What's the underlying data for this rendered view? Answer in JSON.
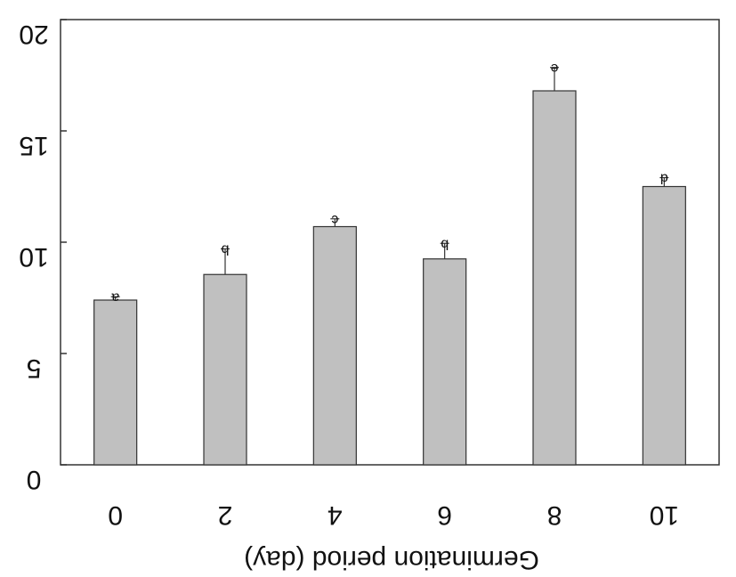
{
  "chart_data": {
    "type": "bar",
    "title": "",
    "xlabel": "Germination period (day)",
    "ylabel": "",
    "categories": [
      "0",
      "2",
      "4",
      "6",
      "8",
      "10"
    ],
    "values": [
      7.4,
      8.55,
      10.7,
      9.25,
      16.8,
      12.5
    ],
    "errors": [
      0.15,
      1.15,
      0.35,
      0.7,
      1.05,
      0.4
    ],
    "significance_letters": [
      "a",
      "b",
      "c",
      "b",
      "e",
      "d"
    ],
    "ylim": [
      0,
      20
    ],
    "yticks": [
      "0",
      "5",
      "10",
      "15",
      "20"
    ],
    "grid": false,
    "legend": "none",
    "bar_color": "#c0c0c0",
    "orientation_note": "rendered upside-down in the original image"
  }
}
